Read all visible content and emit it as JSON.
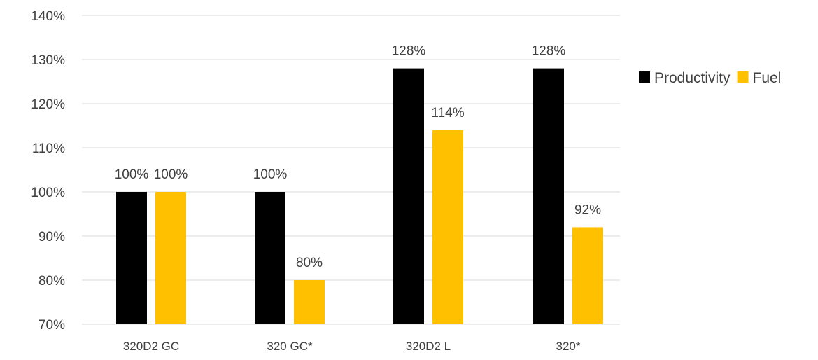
{
  "chart_data": {
    "type": "bar",
    "categories": [
      "320D2 GC",
      "320 GC*",
      "320D2 L",
      "320*"
    ],
    "series": [
      {
        "name": "Productivity",
        "values": [
          100,
          100,
          128,
          128
        ],
        "labels": [
          "100%",
          "100%",
          "128%",
          "128%"
        ],
        "color": "#000000"
      },
      {
        "name": "Fuel",
        "values": [
          100,
          80,
          114,
          92
        ],
        "labels": [
          "100%",
          "80%",
          "114%",
          "92%"
        ],
        "color": "#FFC000"
      }
    ],
    "ylim": [
      70,
      140
    ],
    "yticks": [
      70,
      80,
      90,
      100,
      110,
      120,
      130,
      140
    ],
    "ytick_labels": [
      "70%",
      "80%",
      "90%",
      "100%",
      "110%",
      "120%",
      "130%",
      "140%"
    ],
    "grid": true,
    "legend_position": "right",
    "title": "",
    "xlabel": "",
    "ylabel": ""
  }
}
